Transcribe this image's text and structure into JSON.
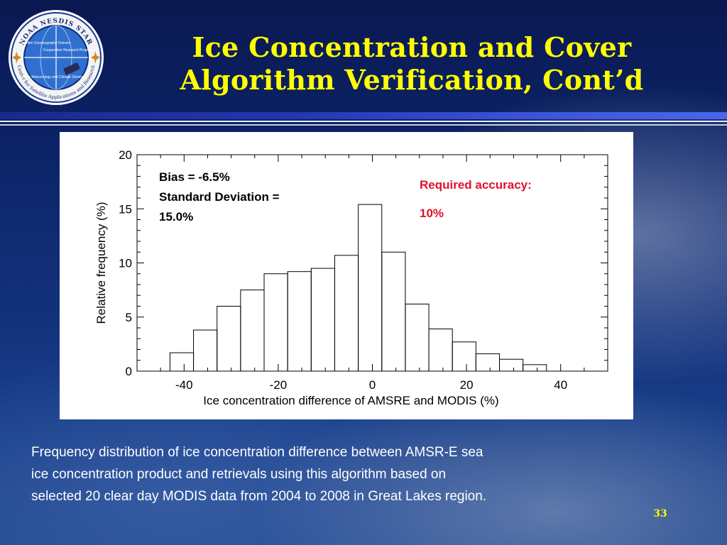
{
  "slide": {
    "title_line1": "Ice Concentration and Cover",
    "title_line2": "Algorithm Verification, Cont’d",
    "page_number": "33",
    "caption_lines": [
      "Frequency distribution of ice concentration difference between AMSR-E sea",
      "ice concentration product and retrievals using this algorithm based on",
      "selected 20 clear day MODIS data from 2004 to 2008 in Great Lakes region."
    ],
    "logo": {
      "ring_top": "NOAA NESDIS STAR",
      "ring_bottom": "Center for Satellite Applications and Research",
      "quadrants": [
        "Satellite Oceanography Division",
        "Cooperative Research Program",
        "Satellite Meteorology and Climate Division"
      ],
      "icon": "noaa-nesdis-star-logo"
    },
    "colors": {
      "title": "#ffff00",
      "caption": "#ffffff",
      "required_accuracy": "#e0102a",
      "page_number": "#ffff00"
    }
  },
  "chart_data": {
    "type": "bar",
    "xlabel": "Ice concentration difference of AMSRE and MODIS (%)",
    "ylabel": "Relative frequency (%)",
    "xlim": [
      -50,
      50
    ],
    "ylim": [
      0,
      20
    ],
    "xticks": [
      -40,
      -20,
      0,
      20,
      40
    ],
    "yticks": [
      0,
      5,
      10,
      15,
      20
    ],
    "bin_edges": [
      -43,
      -38,
      -33,
      -28,
      -23,
      -18,
      -13,
      -8,
      -3,
      2,
      7,
      12,
      17,
      22,
      27,
      32,
      37
    ],
    "values": [
      1.7,
      3.8,
      6.0,
      7.5,
      9.0,
      9.2,
      9.5,
      10.7,
      15.4,
      11.0,
      6.2,
      3.9,
      2.7,
      1.6,
      1.1,
      0.6
    ],
    "grid": false,
    "annotations": {
      "stats_line1": "Bias  = -6.5%",
      "stats_line2": "Standard Deviation =",
      "stats_line3": "15.0%",
      "required_label": "Required accuracy:",
      "required_value": "10%"
    }
  }
}
